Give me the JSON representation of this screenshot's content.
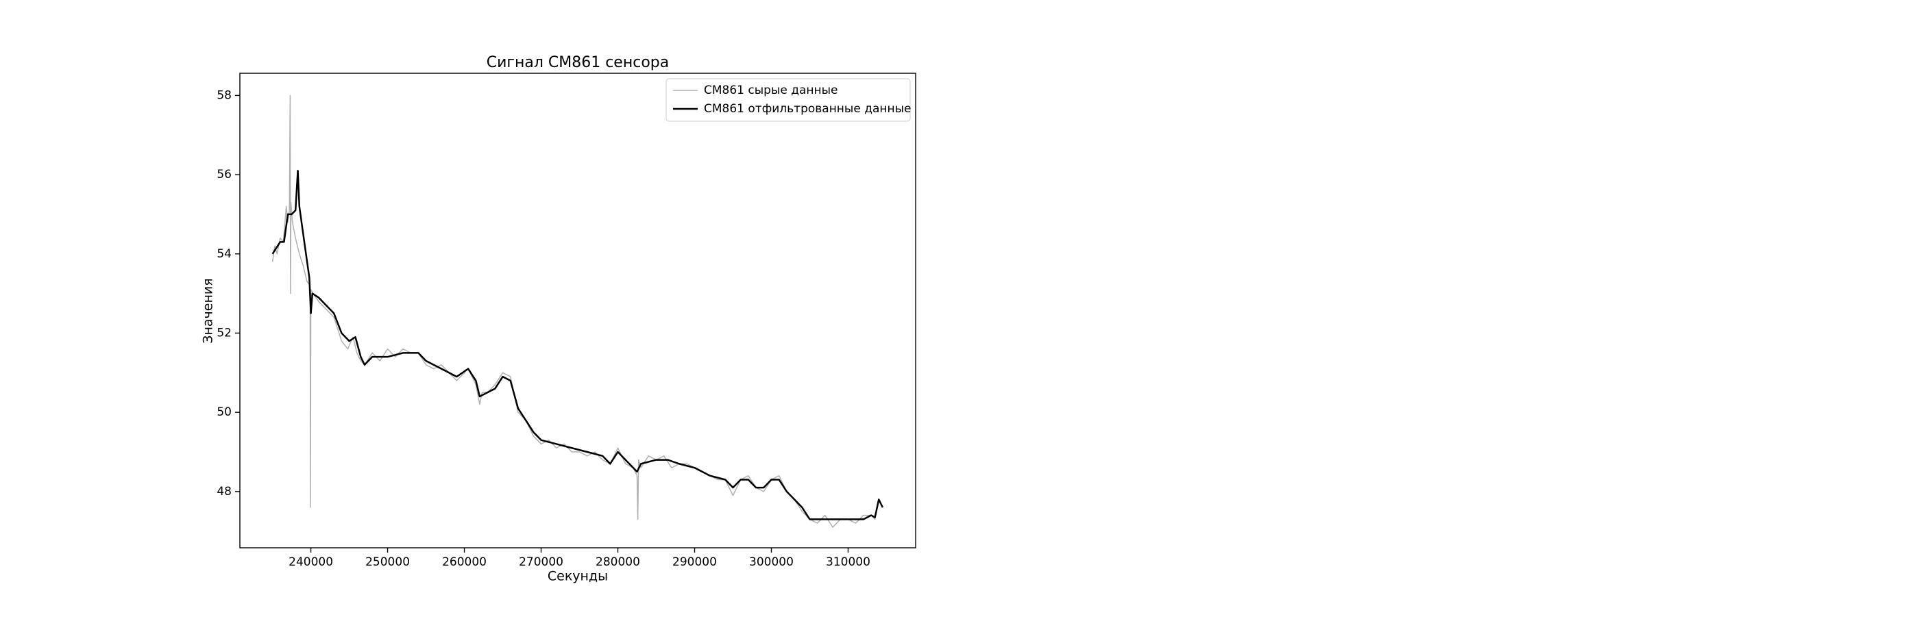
{
  "chart_data": {
    "type": "line",
    "title": "Сигнал CM861 сенсора",
    "x_label": "Секунды",
    "y_label": "Значения",
    "xlim": [
      230750,
      318800
    ],
    "ylim": [
      46.58,
      58.56
    ],
    "xticks": [
      240000,
      250000,
      260000,
      270000,
      280000,
      290000,
      300000,
      310000
    ],
    "yticks": [
      48,
      50,
      52,
      54,
      56,
      58
    ],
    "legend": "upper right",
    "series": [
      {
        "name": "CM861 сырые данные",
        "color": "#b0b0b0",
        "width": 1.5,
        "x": [
          235000,
          235300,
          235600,
          236000,
          236400,
          236800,
          237000,
          237200,
          237300,
          237350,
          237400,
          237600,
          238000,
          238500,
          239000,
          239500,
          239900,
          239950,
          240000,
          240300,
          241000,
          242000,
          243000,
          244000,
          244800,
          245500,
          246000,
          246500,
          247000,
          248000,
          249000,
          250000,
          251000,
          252000,
          253000,
          254000,
          255000,
          256000,
          257000,
          258000,
          259000,
          260000,
          260500,
          261500,
          262000,
          262300,
          263000,
          264000,
          265000,
          266000,
          267000,
          268000,
          269000,
          270000,
          271000,
          272000,
          273000,
          274000,
          275000,
          276000,
          277000,
          278000,
          279000,
          280000,
          280500,
          281000,
          282000,
          282500,
          282600,
          282700,
          283000,
          284000,
          285000,
          286000,
          287000,
          288000,
          289000,
          290000,
          291000,
          292000,
          293000,
          294000,
          295000,
          296000,
          297000,
          298000,
          299000,
          300000,
          301000,
          302000,
          303000,
          304000,
          305000,
          306000,
          307000,
          308000,
          309000,
          310000,
          311000,
          312000,
          313000,
          313500,
          314000,
          314500
        ],
        "values": [
          53.8,
          54.2,
          54.0,
          54.4,
          54.3,
          55.2,
          54.8,
          55.1,
          58.0,
          53.0,
          55.3,
          54.8,
          54.4,
          54.0,
          53.7,
          53.3,
          53.2,
          47.6,
          53.1,
          53.0,
          52.8,
          52.6,
          52.4,
          51.8,
          51.6,
          51.9,
          51.5,
          51.3,
          51.2,
          51.5,
          51.3,
          51.6,
          51.4,
          51.6,
          51.5,
          51.5,
          51.2,
          51.1,
          51.2,
          51.0,
          50.8,
          51.0,
          51.1,
          50.7,
          50.2,
          50.5,
          50.5,
          50.7,
          51.0,
          50.9,
          50.0,
          49.8,
          49.4,
          49.2,
          49.3,
          49.1,
          49.2,
          49.0,
          49.0,
          48.9,
          49.0,
          48.8,
          48.7,
          49.1,
          48.9,
          48.7,
          48.6,
          48.4,
          47.3,
          48.8,
          48.6,
          48.9,
          48.8,
          48.9,
          48.6,
          48.7,
          48.7,
          48.6,
          48.5,
          48.4,
          48.3,
          48.3,
          47.9,
          48.3,
          48.4,
          48.1,
          48.0,
          48.3,
          48.4,
          48.0,
          47.8,
          47.5,
          47.3,
          47.2,
          47.4,
          47.1,
          47.3,
          47.3,
          47.2,
          47.4,
          47.4,
          47.3,
          47.8,
          47.6
        ]
      },
      {
        "name": "CM861 отфильтрованные данные",
        "color": "#000000",
        "width": 2.5,
        "x": [
          235000,
          236000,
          236500,
          237000,
          237500,
          238000,
          238300,
          238500,
          239000,
          239800,
          240000,
          240200,
          241000,
          242000,
          243000,
          244000,
          245000,
          245800,
          246500,
          247000,
          248000,
          250000,
          252000,
          254000,
          255000,
          257000,
          259000,
          260500,
          261500,
          262000,
          263000,
          264000,
          265000,
          266000,
          267000,
          268000,
          269000,
          270000,
          272000,
          274000,
          276000,
          278000,
          279000,
          280000,
          281000,
          282500,
          283000,
          285000,
          286500,
          288000,
          290000,
          292000,
          294000,
          295000,
          296000,
          297000,
          298000,
          299000,
          300000,
          301000,
          302000,
          303000,
          304000,
          305000,
          307000,
          310000,
          312000,
          313000,
          313500,
          314000,
          314500
        ],
        "values": [
          54.0,
          54.3,
          54.3,
          55.0,
          55.0,
          55.1,
          56.1,
          55.2,
          54.5,
          53.4,
          52.5,
          53.0,
          52.9,
          52.7,
          52.5,
          52.0,
          51.8,
          51.9,
          51.4,
          51.2,
          51.4,
          51.4,
          51.5,
          51.5,
          51.3,
          51.1,
          50.9,
          51.1,
          50.8,
          50.4,
          50.5,
          50.6,
          50.9,
          50.8,
          50.1,
          49.8,
          49.5,
          49.3,
          49.2,
          49.1,
          49.0,
          48.9,
          48.7,
          49.0,
          48.8,
          48.5,
          48.7,
          48.8,
          48.8,
          48.7,
          48.6,
          48.4,
          48.3,
          48.1,
          48.3,
          48.3,
          48.1,
          48.1,
          48.3,
          48.3,
          48.0,
          47.8,
          47.6,
          47.3,
          47.3,
          47.3,
          47.3,
          47.4,
          47.35,
          47.8,
          47.6
        ]
      }
    ]
  }
}
